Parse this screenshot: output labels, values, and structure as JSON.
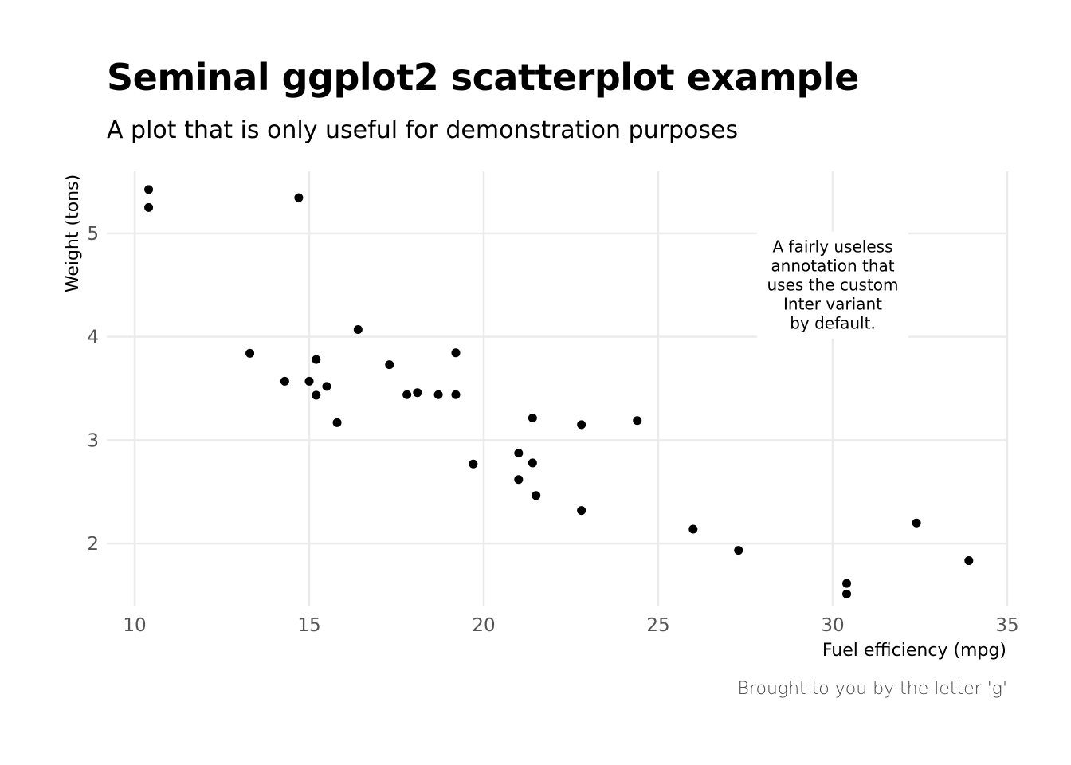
{
  "chart_data": {
    "type": "scatter",
    "title": "Seminal ggplot2 scatterplot example",
    "subtitle": "A plot that is only useful for demonstration purposes",
    "xlabel": "Fuel efficiency (mpg)",
    "ylabel": "Weight (tons)",
    "caption": "Brought to you by the letter 'g'",
    "xlim": [
      9.2,
      35
    ],
    "ylim": [
      1.4,
      5.6
    ],
    "xticks": [
      10,
      15,
      20,
      25,
      30,
      35
    ],
    "yticks": [
      2,
      3,
      4,
      5
    ],
    "grid": true,
    "point_color": "#000000",
    "annotation": {
      "lines": [
        "A fairly useless",
        "annotation that",
        "uses the custom",
        "Inter variant",
        "by default."
      ],
      "x": 30,
      "y": 4.5
    },
    "points": [
      {
        "x": 21.0,
        "y": 2.62
      },
      {
        "x": 21.0,
        "y": 2.875
      },
      {
        "x": 22.8,
        "y": 2.32
      },
      {
        "x": 21.4,
        "y": 3.215
      },
      {
        "x": 18.7,
        "y": 3.44
      },
      {
        "x": 18.1,
        "y": 3.46
      },
      {
        "x": 14.3,
        "y": 3.57
      },
      {
        "x": 24.4,
        "y": 3.19
      },
      {
        "x": 22.8,
        "y": 3.15
      },
      {
        "x": 19.2,
        "y": 3.44
      },
      {
        "x": 17.8,
        "y": 3.44
      },
      {
        "x": 16.4,
        "y": 4.07
      },
      {
        "x": 17.3,
        "y": 3.73
      },
      {
        "x": 15.2,
        "y": 3.78
      },
      {
        "x": 10.4,
        "y": 5.25
      },
      {
        "x": 10.4,
        "y": 5.424
      },
      {
        "x": 14.7,
        "y": 5.345
      },
      {
        "x": 32.4,
        "y": 2.2
      },
      {
        "x": 30.4,
        "y": 1.615
      },
      {
        "x": 33.9,
        "y": 1.835
      },
      {
        "x": 21.5,
        "y": 2.465
      },
      {
        "x": 15.5,
        "y": 3.52
      },
      {
        "x": 15.2,
        "y": 3.435
      },
      {
        "x": 13.3,
        "y": 3.84
      },
      {
        "x": 19.2,
        "y": 3.845
      },
      {
        "x": 27.3,
        "y": 1.935
      },
      {
        "x": 26.0,
        "y": 2.14
      },
      {
        "x": 30.4,
        "y": 1.513
      },
      {
        "x": 15.8,
        "y": 3.17
      },
      {
        "x": 19.7,
        "y": 2.77
      },
      {
        "x": 15.0,
        "y": 3.57
      },
      {
        "x": 21.4,
        "y": 2.78
      }
    ]
  }
}
